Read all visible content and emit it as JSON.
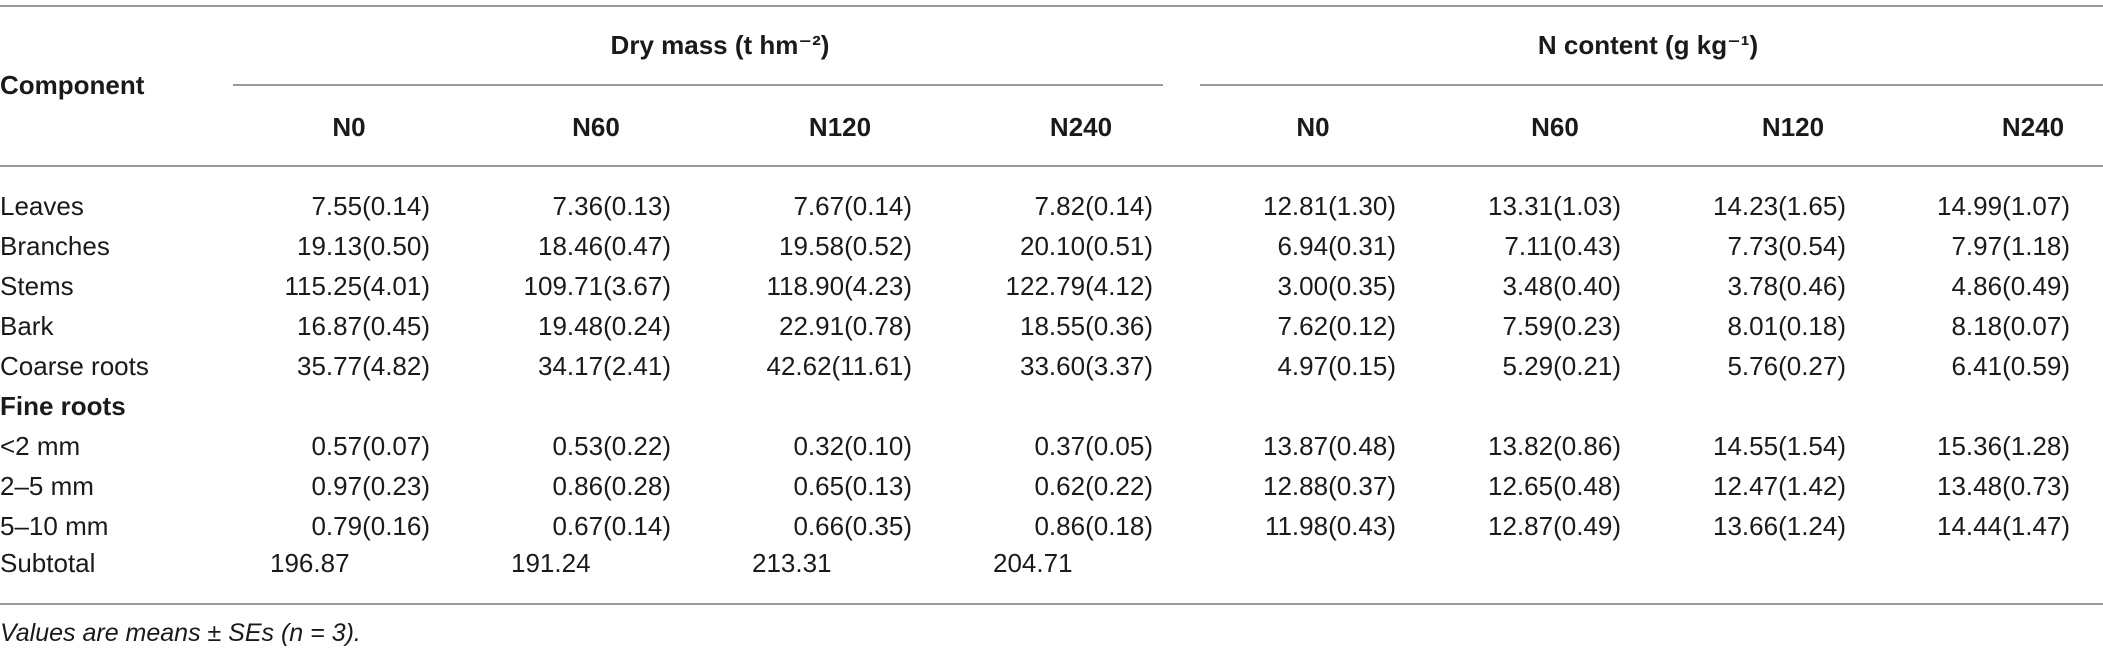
{
  "table": {
    "component_header": "Component",
    "group_headers": [
      "Dry mass (t hm⁻²)",
      "N content (g kg⁻¹)"
    ],
    "columns": [
      "N0",
      "N60",
      "N120",
      "N240",
      "N0",
      "N60",
      "N120",
      "N240"
    ],
    "rows": [
      {
        "label": "Leaves",
        "bold": false,
        "cells": [
          "7.55(0.14)",
          "7.36(0.13)",
          "7.67(0.14)",
          "7.82(0.14)",
          "12.81(1.30)",
          "13.31(1.03)",
          "14.23(1.65)",
          "14.99(1.07)"
        ]
      },
      {
        "label": "Branches",
        "bold": false,
        "cells": [
          "19.13(0.50)",
          "18.46(0.47)",
          "19.58(0.52)",
          "20.10(0.51)",
          "6.94(0.31)",
          "7.11(0.43)",
          "7.73(0.54)",
          "7.97(1.18)"
        ]
      },
      {
        "label": "Stems",
        "bold": false,
        "cells": [
          "115.25(4.01)",
          "109.71(3.67)",
          "118.90(4.23)",
          "122.79(4.12)",
          "3.00(0.35)",
          "3.48(0.40)",
          "3.78(0.46)",
          "4.86(0.49)"
        ]
      },
      {
        "label": "Bark",
        "bold": false,
        "cells": [
          "16.87(0.45)",
          "19.48(0.24)",
          "22.91(0.78)",
          "18.55(0.36)",
          "7.62(0.12)",
          "7.59(0.23)",
          "8.01(0.18)",
          "8.18(0.07)"
        ]
      },
      {
        "label": "Coarse roots",
        "bold": false,
        "cells": [
          "35.77(4.82)",
          "34.17(2.41)",
          "42.62(11.61)",
          "33.60(3.37)",
          "4.97(0.15)",
          "5.29(0.21)",
          "5.76(0.27)",
          "6.41(0.59)"
        ]
      },
      {
        "label": "Fine roots",
        "bold": true,
        "cells": [
          "",
          "",
          "",
          "",
          "",
          "",
          "",
          ""
        ]
      },
      {
        "label": "<2 mm",
        "bold": false,
        "cells": [
          "0.57(0.07)",
          "0.53(0.22)",
          "0.32(0.10)",
          "0.37(0.05)",
          "13.87(0.48)",
          "13.82(0.86)",
          "14.55(1.54)",
          "15.36(1.28)"
        ]
      },
      {
        "label": "2–5 mm",
        "bold": false,
        "cells": [
          "0.97(0.23)",
          "0.86(0.28)",
          "0.65(0.13)",
          "0.62(0.22)",
          "12.88(0.37)",
          "12.65(0.48)",
          "12.47(1.42)",
          "13.48(0.73)"
        ]
      },
      {
        "label": "5–10 mm",
        "bold": false,
        "cells": [
          "0.79(0.16)",
          "0.67(0.14)",
          "0.66(0.35)",
          "0.86(0.18)",
          "11.98(0.43)",
          "12.87(0.49)",
          "13.66(1.24)",
          "14.44(1.47)"
        ]
      }
    ],
    "subtotal": {
      "label": "Subtotal",
      "cells": [
        "196.87",
        "191.24",
        "213.31",
        "204.71"
      ]
    }
  },
  "footnote": "Values are means ± SEs (n = 3)."
}
